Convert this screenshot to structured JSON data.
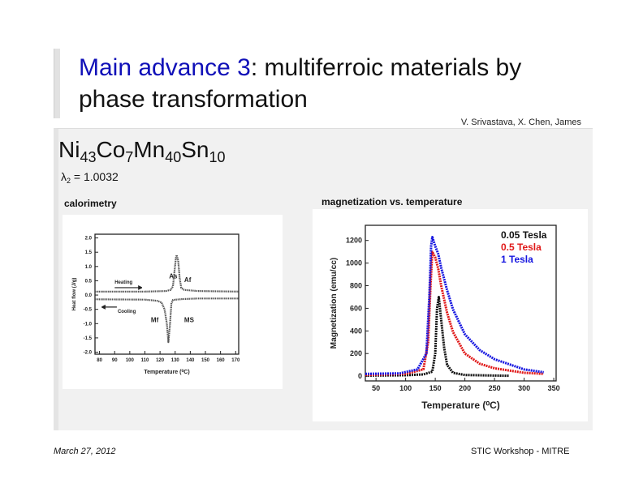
{
  "slide": {
    "title_highlight": "Main advance 3",
    "title_rest": ": multiferroic materials by phase transformation",
    "authors": "V. Srivastava, X. Chen, James",
    "formula": {
      "parts": [
        [
          "Ni",
          "43"
        ],
        [
          "Co",
          "7"
        ],
        [
          "Mn",
          "40"
        ],
        [
          "Sn",
          "10"
        ]
      ]
    },
    "lambda": {
      "symbol": "λ",
      "sub": "2",
      "value": " = 1.0032"
    },
    "left_label": "calorimetry",
    "right_label": "magnetization vs. temperature",
    "footer_date": "March 27, 2012",
    "footer_event": "STIC Workshop - MITRE",
    "highlight_color": "#1010b8"
  },
  "chart_data": [
    {
      "type": "scatter",
      "title": "",
      "xlabel": "Temperature (⁰C)",
      "ylabel": "Heat flow (J/g)",
      "xlim": [
        77,
        172
      ],
      "ylim": [
        -2.07,
        2.13
      ],
      "xticks": [
        80,
        90,
        100,
        110,
        120,
        130,
        140,
        150,
        160,
        170
      ],
      "yticks": [
        2.0,
        1.5,
        1.0,
        0.5,
        0.0,
        -0.5,
        -1.0,
        -1.5,
        -2.0
      ],
      "series": [
        {
          "color": "#555555",
          "points": [
            [
              77,
              0.12
            ],
            [
              110,
              0.12
            ],
            [
              124,
              0.14
            ],
            [
              127,
              0.18
            ],
            [
              128.5,
              0.3
            ],
            [
              129.5,
              0.8
            ],
            [
              130.5,
              1.3
            ],
            [
              131,
              1.4
            ],
            [
              132,
              1.2
            ],
            [
              133,
              0.6
            ],
            [
              134,
              0.25
            ],
            [
              136,
              0.18
            ],
            [
              145,
              0.14
            ],
            [
              172,
              0.12
            ]
          ]
        },
        {
          "color": "#555555",
          "points": [
            [
              77,
              -0.15
            ],
            [
              110,
              -0.16
            ],
            [
              118,
              -0.2
            ],
            [
              121,
              -0.26
            ],
            [
              123,
              -0.5
            ],
            [
              124.5,
              -1.0
            ],
            [
              125.5,
              -1.65
            ],
            [
              126.5,
              -1.1
            ],
            [
              127.5,
              -0.3
            ],
            [
              128.5,
              -0.17
            ],
            [
              135,
              -0.14
            ],
            [
              145,
              -0.12
            ],
            [
              172,
              -0.12
            ]
          ]
        }
      ],
      "annotations": [
        {
          "text": "Heating",
          "x": 90,
          "y": 0.4,
          "arrow": "right"
        },
        {
          "text": "Cooling",
          "x": 92,
          "y": -0.62,
          "arrow": "left"
        },
        {
          "text": "As",
          "x": 126,
          "y": 0.58
        },
        {
          "text": "Af",
          "x": 136,
          "y": 0.45
        },
        {
          "text": "Mf",
          "x": 114,
          "y": -0.95
        },
        {
          "text": "MS",
          "x": 136,
          "y": -0.95
        }
      ],
      "grid": false
    },
    {
      "type": "scatter",
      "title": "",
      "xlabel": "Temperature (⁰C)",
      "ylabel": "Magnetization (emu/cc)",
      "xlim": [
        32,
        354
      ],
      "ylim": [
        -42,
        1334
      ],
      "xticks": [
        50,
        100,
        150,
        200,
        250,
        300,
        350
      ],
      "yticks": [
        0,
        200,
        400,
        600,
        800,
        1000,
        1200
      ],
      "legend": "top-right",
      "series": [
        {
          "name": "0.05 Tesla",
          "color": "#111111",
          "points": [
            [
              32,
              5
            ],
            [
              100,
              8
            ],
            [
              130,
              15
            ],
            [
              145,
              40
            ],
            [
              150,
              200
            ],
            [
              153,
              600
            ],
            [
              156,
              700
            ],
            [
              160,
              500
            ],
            [
              165,
              250
            ],
            [
              170,
              100
            ],
            [
              180,
              30
            ],
            [
              200,
              10
            ],
            [
              275,
              3
            ]
          ]
        },
        {
          "name": "0.5 Tesla",
          "color": "#e01818",
          "points": [
            [
              32,
              10
            ],
            [
              100,
              20
            ],
            [
              130,
              60
            ],
            [
              138,
              300
            ],
            [
              142,
              800
            ],
            [
              145,
              1100
            ],
            [
              150,
              1050
            ],
            [
              155,
              950
            ],
            [
              160,
              800
            ],
            [
              170,
              560
            ],
            [
              180,
              390
            ],
            [
              200,
              200
            ],
            [
              225,
              110
            ],
            [
              250,
              70
            ],
            [
              300,
              30
            ],
            [
              333,
              20
            ]
          ]
        },
        {
          "name": "1 Tesla",
          "color": "#1515e0",
          "points": [
            [
              32,
              20
            ],
            [
              90,
              25
            ],
            [
              120,
              60
            ],
            [
              135,
              200
            ],
            [
              140,
              700
            ],
            [
              143,
              1150
            ],
            [
              145,
              1230
            ],
            [
              150,
              1150
            ],
            [
              155,
              1080
            ],
            [
              160,
              960
            ],
            [
              170,
              760
            ],
            [
              180,
              590
            ],
            [
              200,
              370
            ],
            [
              225,
              230
            ],
            [
              250,
              150
            ],
            [
              300,
              60
            ],
            [
              333,
              35
            ]
          ]
        }
      ],
      "grid": false
    }
  ]
}
